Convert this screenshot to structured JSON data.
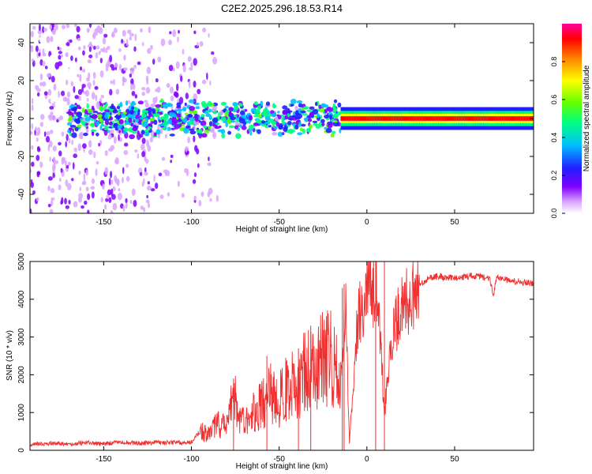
{
  "title": "C2E2.2025.296.18.53.R14",
  "chart_data": [
    {
      "type": "heatmap",
      "title": "C2E2.2025.296.18.53.R14",
      "xlabel": "Height of straight line (km)",
      "ylabel": "Frequency (Hz)",
      "xlim": [
        -192,
        95
      ],
      "ylim": [
        -50,
        50
      ],
      "xticks": [
        -150,
        -100,
        -50,
        0,
        50
      ],
      "yticks": [
        -40,
        -20,
        0,
        20,
        40
      ],
      "colorbar": {
        "label": "Normalized spectral amplitude",
        "range": [
          0,
          1
        ],
        "ticks": [
          0,
          0.2,
          0.4,
          0.6,
          0.8
        ],
        "ticklabels": [
          "0.0",
          "0.2",
          "0.4",
          "0.6",
          "0.8"
        ],
        "colors": [
          "#ffffff",
          "#d9a6ff",
          "#8000ff",
          "#2020ff",
          "#00c0ff",
          "#00ff80",
          "#60ff00",
          "#ffff00",
          "#ff8000",
          "#ff0000",
          "#ff00a0"
        ]
      },
      "features": [
        {
          "name": "scattered noise speckle",
          "x_range": [
            -192,
            -85
          ],
          "freq_range": [
            -50,
            50
          ],
          "amplitude": 0.12
        },
        {
          "name": "central echo band",
          "x_range": [
            -170,
            -15
          ],
          "freq_range": [
            -10,
            10
          ],
          "amplitude": 0.45
        },
        {
          "name": "narrow echo band",
          "x_range": [
            -15,
            95
          ],
          "freq_range": [
            -3,
            3
          ],
          "amplitude": 0.9
        }
      ]
    },
    {
      "type": "line",
      "xlabel": "Height of straight line (km)",
      "ylabel": "SNR (10 * v/v)",
      "xlim": [
        -192,
        95
      ],
      "ylim": [
        0,
        5000
      ],
      "xticks": [
        -150,
        -100,
        -50,
        0,
        50
      ],
      "yticks": [
        0,
        1000,
        2000,
        3000,
        4000,
        5000
      ],
      "color": "#f03030",
      "series": [
        {
          "name": "SNR",
          "x": [
            -190,
            -180,
            -170,
            -160,
            -150,
            -140,
            -130,
            -120,
            -110,
            -100,
            -95,
            -90,
            -85,
            -80,
            -76,
            -72,
            -65,
            -60,
            -55,
            -50,
            -45,
            -40,
            -35,
            -30,
            -25,
            -20,
            -15,
            -12,
            -10,
            -5,
            0,
            5,
            8,
            10,
            15,
            20,
            25,
            30,
            35,
            40,
            50,
            60,
            70,
            72,
            74,
            80,
            90,
            95
          ],
          "y": [
            150,
            180,
            160,
            200,
            170,
            220,
            180,
            210,
            200,
            220,
            500,
            400,
            700,
            600,
            1700,
            700,
            1000,
            1200,
            1500,
            1300,
            1800,
            1600,
            2200,
            2000,
            2500,
            2400,
            1800,
            3800,
            200,
            3600,
            4000,
            4400,
            2500,
            1000,
            3200,
            3700,
            4100,
            4400,
            4550,
            4600,
            4550,
            4620,
            4550,
            4100,
            4600,
            4500,
            4450,
            4400
          ],
          "spikes": [
            {
              "x": -76,
              "y": 1900
            },
            {
              "x": -57,
              "y": 2500
            },
            {
              "x": -39,
              "y": 2700
            },
            {
              "x": -32,
              "y": 3300
            },
            {
              "x": -14,
              "y": 4300
            },
            {
              "x": -13,
              "y": 4400
            },
            {
              "x": 5,
              "y": 5000
            },
            {
              "x": 10,
              "y": 5000
            }
          ]
        }
      ]
    }
  ]
}
